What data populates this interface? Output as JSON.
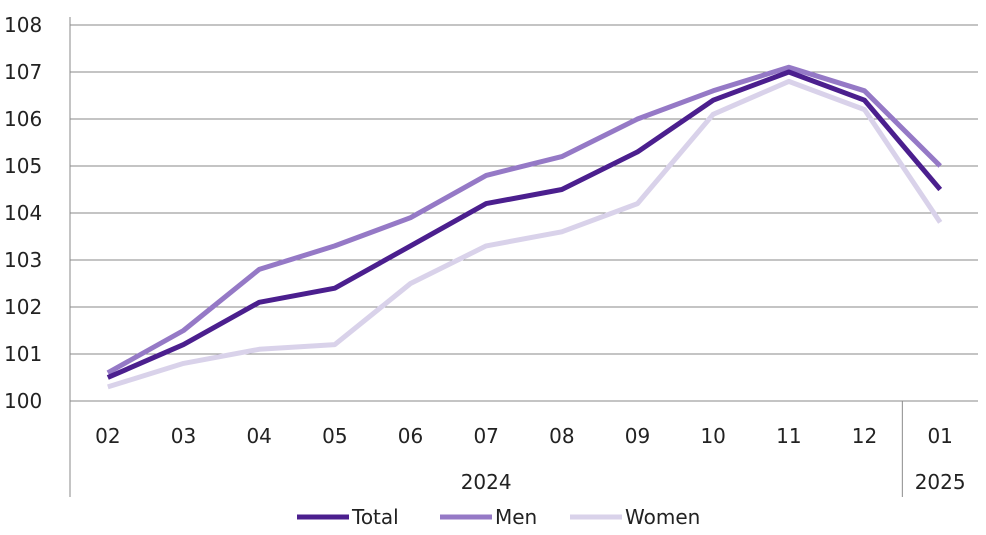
{
  "chart_data": {
    "type": "line",
    "categories": [
      "02",
      "03",
      "04",
      "05",
      "06",
      "07",
      "08",
      "09",
      "10",
      "11",
      "12",
      "01"
    ],
    "year_groups": [
      {
        "label": "2024",
        "from": 0,
        "to": 10
      },
      {
        "label": "2025",
        "from": 11,
        "to": 11
      }
    ],
    "series": [
      {
        "name": "Total",
        "color": "#4b1f8e",
        "values": [
          100.5,
          101.2,
          102.1,
          102.4,
          103.3,
          104.2,
          104.5,
          105.3,
          106.4,
          107.0,
          106.4,
          104.5
        ]
      },
      {
        "name": "Men",
        "color": "#9579c6",
        "values": [
          100.6,
          101.5,
          102.8,
          103.3,
          103.9,
          104.8,
          105.2,
          106.0,
          106.6,
          107.1,
          106.6,
          105.0
        ]
      },
      {
        "name": "Women",
        "color": "#d9d2ea",
        "values": [
          100.3,
          100.8,
          101.1,
          101.2,
          102.5,
          103.3,
          103.6,
          104.2,
          106.1,
          106.8,
          106.2,
          103.8
        ]
      }
    ],
    "y_ticks": [
      "100",
      "101",
      "102",
      "103",
      "104",
      "105",
      "106",
      "107",
      "108"
    ],
    "ylim": [
      100,
      108
    ],
    "grid": true,
    "legend_position": "bottom"
  }
}
